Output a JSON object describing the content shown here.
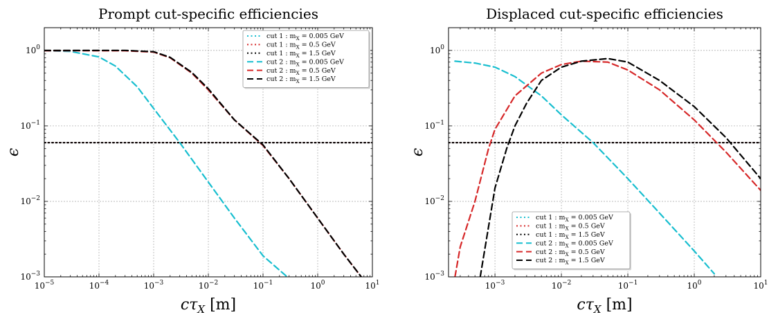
{
  "chart_data": [
    {
      "type": "line",
      "title": "Prompt cut-specific efficiencies",
      "xlabel": "cτ_X [m]",
      "ylabel": "ϵ",
      "xscale": "log",
      "yscale": "log",
      "xlim": [
        1e-05,
        10
      ],
      "ylim": [
        0.001,
        2
      ],
      "xticks": [
        "10^-5",
        "10^-4",
        "10^-3",
        "10^-2",
        "10^-1",
        "10^0",
        "10^1"
      ],
      "yticks": [
        "10^-3",
        "10^-2",
        "10^-1",
        "10^0"
      ],
      "grid": true,
      "legend_position": "top-right",
      "series": [
        {
          "name": "cut 1 : m_X = 0.005 GeV",
          "color": "#17becf",
          "style": "dotted",
          "x": [
            1e-05,
            10
          ],
          "y": [
            0.06,
            0.06
          ]
        },
        {
          "name": "cut 1 : m_X = 0.5 GeV",
          "color": "#d62728",
          "style": "dotted",
          "x": [
            1e-05,
            10
          ],
          "y": [
            0.06,
            0.06
          ]
        },
        {
          "name": "cut 1 : m_X = 1.5 GeV",
          "color": "#000000",
          "style": "dotted",
          "x": [
            1e-05,
            10
          ],
          "y": [
            0.06,
            0.06
          ]
        },
        {
          "name": "cut 2 : m_X = 0.005 GeV",
          "color": "#17becf",
          "style": "dashed",
          "x": [
            1e-05,
            3e-05,
            0.0001,
            0.0002,
            0.0005,
            0.001,
            0.003,
            0.01,
            0.03,
            0.1,
            0.3
          ],
          "y": [
            0.99,
            0.97,
            0.82,
            0.62,
            0.33,
            0.17,
            0.06,
            0.018,
            0.006,
            0.0019,
            0.00095
          ]
        },
        {
          "name": "cut 2 : m_X = 0.5 GeV",
          "color": "#d62728",
          "style": "dashed",
          "x": [
            1e-05,
            0.0003,
            0.001,
            0.002,
            0.005,
            0.01,
            0.03,
            0.1,
            0.3,
            1,
            3,
            7
          ],
          "y": [
            0.99,
            0.99,
            0.95,
            0.8,
            0.5,
            0.3,
            0.12,
            0.055,
            0.02,
            0.006,
            0.002,
            0.0009
          ]
        },
        {
          "name": "cut 2 : m_X = 1.5 GeV",
          "color": "#000000",
          "style": "dashed",
          "x": [
            1e-05,
            0.0003,
            0.001,
            0.002,
            0.005,
            0.01,
            0.03,
            0.1,
            0.3,
            1,
            3,
            7
          ],
          "y": [
            1.0,
            1.0,
            0.96,
            0.81,
            0.51,
            0.31,
            0.12,
            0.056,
            0.02,
            0.006,
            0.002,
            0.0009
          ]
        }
      ]
    },
    {
      "type": "line",
      "title": "Displaced cut-specific efficiencies",
      "xlabel": "cτ_X [m]",
      "ylabel": "ϵ",
      "xscale": "log",
      "yscale": "log",
      "xlim": [
        0.0002,
        10
      ],
      "ylim": [
        0.001,
        2
      ],
      "xticks": [
        "10^-3",
        "10^-2",
        "10^-1",
        "10^0",
        "10^1"
      ],
      "yticks": [
        "10^-3",
        "10^-2",
        "10^-1",
        "10^0"
      ],
      "grid": true,
      "legend_position": "lower-center",
      "series": [
        {
          "name": "cut 1 : m_X = 0.005 GeV",
          "color": "#17becf",
          "style": "dotted",
          "x": [
            0.0002,
            10
          ],
          "y": [
            0.06,
            0.06
          ]
        },
        {
          "name": "cut 1 : m_X = 0.5 GeV",
          "color": "#d62728",
          "style": "dotted",
          "x": [
            0.0002,
            10
          ],
          "y": [
            0.06,
            0.06
          ]
        },
        {
          "name": "cut 1 : m_X = 1.5 GeV",
          "color": "#000000",
          "style": "dotted",
          "x": [
            0.0002,
            10
          ],
          "y": [
            0.06,
            0.06
          ]
        },
        {
          "name": "cut 2 : m_X = 0.005 GeV",
          "color": "#17becf",
          "style": "dashed",
          "x": [
            0.00025,
            0.0005,
            0.001,
            0.002,
            0.005,
            0.01,
            0.03,
            0.1,
            0.3,
            1,
            2
          ],
          "y": [
            0.72,
            0.68,
            0.6,
            0.45,
            0.25,
            0.14,
            0.06,
            0.02,
            0.007,
            0.0022,
            0.0011
          ]
        },
        {
          "name": "cut 2 : m_X = 0.5 GeV",
          "color": "#d62728",
          "style": "dashed",
          "x": [
            0.00025,
            0.0003,
            0.0005,
            0.0008,
            0.001,
            0.002,
            0.005,
            0.01,
            0.02,
            0.05,
            0.1,
            0.3,
            1,
            3,
            10
          ],
          "y": [
            0.001,
            0.0025,
            0.01,
            0.05,
            0.09,
            0.25,
            0.5,
            0.65,
            0.72,
            0.7,
            0.55,
            0.3,
            0.12,
            0.045,
            0.014
          ]
        },
        {
          "name": "cut 2 : m_X = 1.5 GeV",
          "color": "#000000",
          "style": "dashed",
          "x": [
            0.0006,
            0.001,
            0.0015,
            0.002,
            0.003,
            0.005,
            0.01,
            0.02,
            0.05,
            0.1,
            0.3,
            1,
            3,
            10
          ],
          "y": [
            0.001,
            0.015,
            0.05,
            0.1,
            0.2,
            0.4,
            0.6,
            0.72,
            0.78,
            0.7,
            0.4,
            0.18,
            0.07,
            0.02
          ]
        }
      ]
    }
  ]
}
